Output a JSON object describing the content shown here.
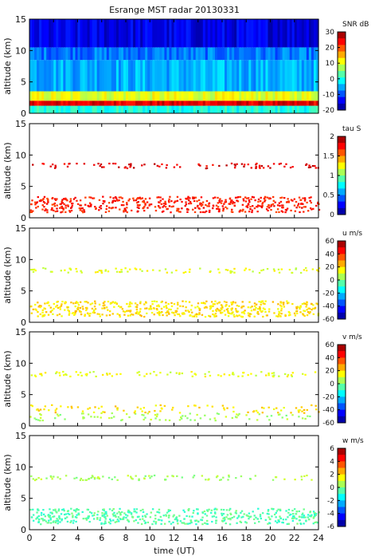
{
  "chart_data": {
    "type": "heatmap",
    "title": "Esrange MST radar 20130331",
    "xlabel": "time (UT)",
    "xlim": [
      0,
      24
    ],
    "xticks": [
      "0",
      "2",
      "4",
      "6",
      "8",
      "10",
      "12",
      "14",
      "16",
      "18",
      "20",
      "22",
      "24"
    ],
    "grid": false,
    "panels": [
      {
        "ylabel": "altitude (km)",
        "ylim": [
          0,
          15
        ],
        "yticks": [
          "0",
          "5",
          "10",
          "15"
        ],
        "colorbar": {
          "label": "SNR dB",
          "range": [
            -20,
            30
          ],
          "ticks": [
            "30",
            "20",
            "10",
            "0",
            "-10",
            "-20"
          ]
        },
        "layers": [
          {
            "alt_range": [
              0,
              1.2
            ],
            "value": 0
          },
          {
            "alt_range": [
              1.2,
              2.0
            ],
            "value": 25
          },
          {
            "alt_range": [
              2.0,
              3.5
            ],
            "value": 10
          },
          {
            "alt_range": [
              3.5,
              8.5
            ],
            "value": -5
          },
          {
            "alt_range": [
              8.5,
              10.5
            ],
            "value": -8
          },
          {
            "alt_range": [
              10.5,
              15
            ],
            "value": -15
          }
        ]
      },
      {
        "ylabel": "altitude (km)",
        "ylim": [
          0,
          15
        ],
        "yticks": [
          "0",
          "5",
          "10",
          "15"
        ],
        "colorbar": {
          "label": "tau S",
          "range": [
            0,
            2
          ],
          "ticks": [
            "2",
            "1.5",
            "1",
            "0.5",
            "0"
          ]
        },
        "layers": [
          {
            "alt_range": [
              1.0,
              3.5
            ],
            "value": 1.7
          },
          {
            "alt_range": [
              8.0,
              8.8
            ],
            "value": 1.8
          }
        ]
      },
      {
        "ylabel": "altitude (km)",
        "ylim": [
          0,
          15
        ],
        "yticks": [
          "0",
          "5",
          "10",
          "15"
        ],
        "colorbar": {
          "label": "u m/s",
          "range": [
            -60,
            60
          ],
          "ticks": [
            "60",
            "40",
            "20",
            "0",
            "-20",
            "-40",
            "-60"
          ]
        },
        "layers": [
          {
            "alt_range": [
              1.0,
              3.5
            ],
            "value": 18
          },
          {
            "alt_range": [
              8.0,
              8.8
            ],
            "value": 12
          }
        ]
      },
      {
        "ylabel": "altitude (km)",
        "ylim": [
          0,
          15
        ],
        "yticks": [
          "0",
          "5",
          "10",
          "15"
        ],
        "colorbar": {
          "label": "v m/s",
          "range": [
            -60,
            60
          ],
          "ticks": [
            "60",
            "40",
            "20",
            "0",
            "-20",
            "-40",
            "-60"
          ]
        },
        "layers": [
          {
            "alt_range": [
              1.0,
              2.2
            ],
            "value": 5
          },
          {
            "alt_range": [
              2.2,
              3.5
            ],
            "value": 18
          },
          {
            "alt_range": [
              8.0,
              8.8
            ],
            "value": 12
          }
        ]
      },
      {
        "ylabel": "altitude (km)",
        "ylim": [
          0,
          15
        ],
        "yticks": [
          "0",
          "5",
          "10",
          "15"
        ],
        "colorbar": {
          "label": "w m/s",
          "range": [
            -6,
            6
          ],
          "ticks": [
            "6",
            "4",
            "2",
            "0",
            "-2",
            "-4",
            "-6"
          ]
        },
        "layers": [
          {
            "alt_range": [
              1.0,
              3.5
            ],
            "value": -0.5
          },
          {
            "alt_range": [
              8.0,
              8.8
            ],
            "value": 0.5
          }
        ]
      }
    ]
  }
}
